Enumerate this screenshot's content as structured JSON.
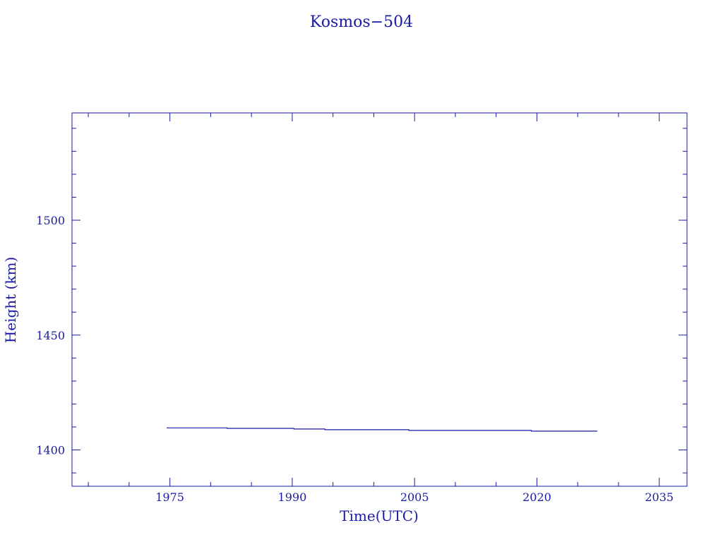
{
  "chart_data": {
    "type": "line",
    "title": "Kosmos−504",
    "xlabel": "Time(UTC)",
    "ylabel": "Height (km)",
    "xlim": [
      1963.0,
      2038.4
    ],
    "ylim": [
      1384.2,
      1546.7
    ],
    "x_ticks": [
      "1975",
      "1990",
      "2005",
      "2020",
      "2035"
    ],
    "x_tick_values": [
      1975,
      1990,
      2005,
      2020,
      2035
    ],
    "y_ticks": [
      "1400",
      "1450",
      "1500"
    ],
    "y_tick_values": [
      1400,
      1450,
      1500
    ],
    "grid": false,
    "color": "#1a1aa6",
    "series": [
      {
        "x": [
          1974.6,
          1982.0,
          1982.0,
          1990.2,
          1990.2,
          1994.0,
          1994.0,
          2004.3,
          2004.3,
          2019.3,
          2019.3,
          2027.4
        ],
        "y": [
          1409.6,
          1409.6,
          1409.4,
          1409.4,
          1409.1,
          1409.1,
          1408.8,
          1408.8,
          1408.5,
          1408.5,
          1408.2,
          1408.2
        ]
      }
    ]
  }
}
